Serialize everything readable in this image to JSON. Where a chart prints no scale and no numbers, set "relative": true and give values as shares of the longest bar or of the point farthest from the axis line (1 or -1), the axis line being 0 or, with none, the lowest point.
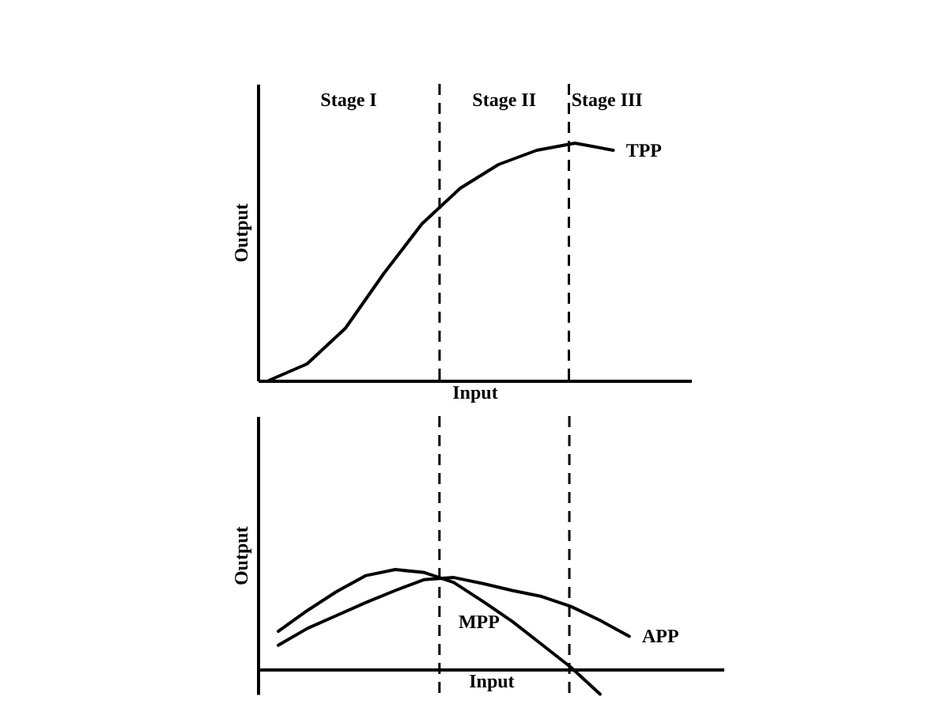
{
  "chart_data": [
    {
      "type": "line",
      "relative": true,
      "xlabel": "Input",
      "ylabel": "Output",
      "grid": false,
      "marker": "none",
      "line_style": "solid",
      "annotations": [
        "Stage I",
        "Stage II",
        "Stage III"
      ],
      "categories": [
        null,
        null,
        null,
        null,
        null,
        null,
        null,
        null,
        null,
        null
      ],
      "series": [
        {
          "name": "TPP",
          "color": "#000000",
          "values": [
            0,
            0.07,
            0.22,
            0.45,
            0.66,
            0.81,
            0.91,
            0.97,
            1,
            0.97
          ]
        }
      ]
    },
    {
      "type": "line",
      "relative": true,
      "xlabel": "Input",
      "ylabel": "Output",
      "grid": false,
      "marker": "none",
      "line_style": "solid",
      "categories": [
        null,
        null,
        null,
        null,
        null,
        null,
        null,
        null,
        null,
        null,
        null,
        null,
        null
      ],
      "series": [
        {
          "name": "MPP",
          "color": "#000000",
          "values": [
            0.38,
            0.59,
            0.78,
            0.94,
            1,
            0.97,
            0.87,
            0.68,
            0.48,
            0.25,
            0.02,
            -0.25,
            null
          ]
        },
        {
          "name": "APP",
          "color": "#000000",
          "values": [
            0.24,
            0.41,
            0.54,
            0.67,
            0.79,
            0.9,
            0.92,
            0.86,
            0.79,
            0.73,
            0.63,
            0.49,
            0.33
          ]
        }
      ]
    }
  ]
}
